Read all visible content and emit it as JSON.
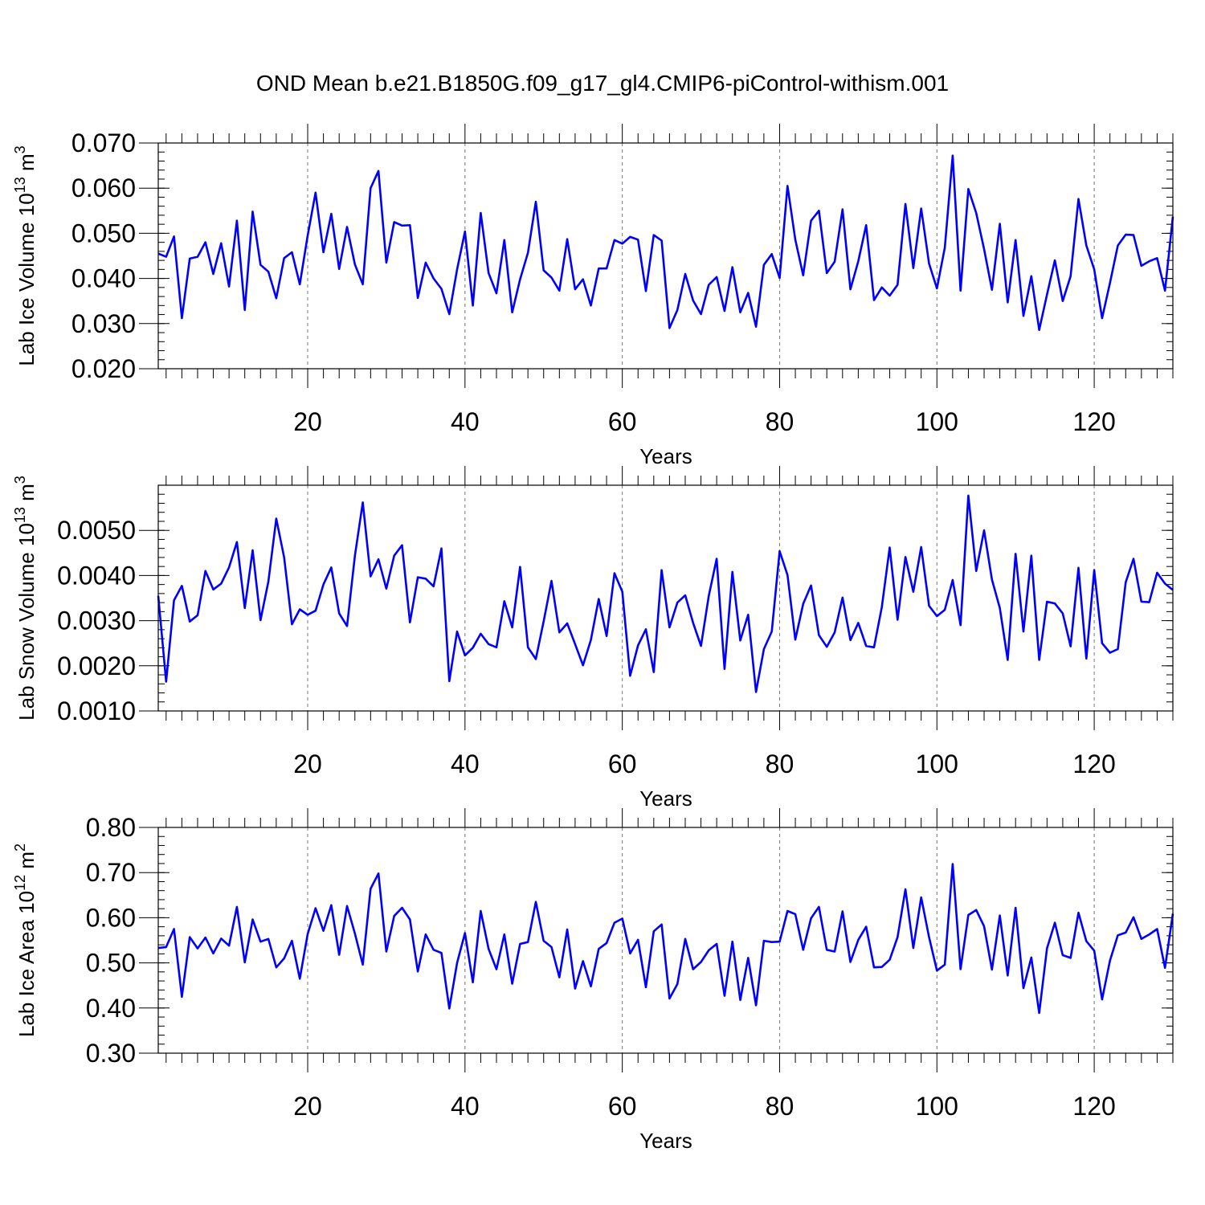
{
  "figure_title": "OND Mean b.e21.B1850G.f09_g17_gl4.CMIP6-piControl-withism.001",
  "colors": {
    "series": "#0000ff",
    "grid": "#777777",
    "frame": "#000000"
  },
  "chart_data": [
    {
      "type": "line",
      "name": "ice-volume",
      "ylabel": {
        "base": "Lab Ice Volume 10",
        "exp": "13",
        "unit": " m",
        "unit_exp": "3"
      },
      "xlabel": "Years",
      "xlim": [
        1,
        130
      ],
      "ylim": [
        0.02,
        0.07
      ],
      "xticks": [
        20,
        40,
        60,
        80,
        100,
        120
      ],
      "xtick_labels": [
        "20",
        "40",
        "60",
        "80",
        "100",
        "120"
      ],
      "yticks": [
        0.02,
        0.03,
        0.04,
        0.05,
        0.06,
        0.07
      ],
      "ytick_labels": [
        "0.020",
        "0.030",
        "0.040",
        "0.050",
        "0.060",
        "0.070"
      ],
      "y_minor_step": 0.002,
      "grid": "vertical-dashed",
      "x": [
        1,
        2,
        3,
        4,
        5,
        6,
        7,
        8,
        9,
        10,
        11,
        12,
        13,
        14,
        15,
        16,
        17,
        18,
        19,
        20,
        21,
        22,
        23,
        24,
        25,
        26,
        27,
        28,
        29,
        30,
        31,
        32,
        33,
        34,
        35,
        36,
        37,
        38,
        39,
        40,
        41,
        42,
        43,
        44,
        45,
        46,
        47,
        48,
        49,
        50,
        51,
        52,
        53,
        54,
        55,
        56,
        57,
        58,
        59,
        60,
        61,
        62,
        63,
        64,
        65,
        66,
        67,
        68,
        69,
        70,
        71,
        72,
        73,
        74,
        75,
        76,
        77,
        78,
        79,
        80,
        81,
        82,
        83,
        84,
        85,
        86,
        87,
        88,
        89,
        90,
        91,
        92,
        93,
        94,
        95,
        96,
        97,
        98,
        99,
        100,
        101,
        102,
        103,
        104,
        105,
        106,
        107,
        108,
        109,
        110,
        111,
        112,
        113,
        114,
        115,
        116,
        117,
        118,
        119,
        120,
        121,
        122,
        123,
        124,
        125,
        126,
        127,
        128,
        129,
        130
      ],
      "values": [
        0.0455,
        0.0448,
        0.0493,
        0.0312,
        0.0444,
        0.0448,
        0.048,
        0.041,
        0.0478,
        0.0382,
        0.0528,
        0.033,
        0.0548,
        0.043,
        0.0415,
        0.0356,
        0.0445,
        0.0458,
        0.0387,
        0.0495,
        0.059,
        0.0458,
        0.0543,
        0.0421,
        0.0514,
        0.0431,
        0.0387,
        0.06,
        0.0638,
        0.0435,
        0.0525,
        0.0517,
        0.0518,
        0.0357,
        0.0435,
        0.04,
        0.0377,
        0.0321,
        0.042,
        0.0504,
        0.034,
        0.0545,
        0.0412,
        0.0367,
        0.0485,
        0.0325,
        0.0398,
        0.0457,
        0.057,
        0.0418,
        0.0402,
        0.0373,
        0.0487,
        0.0376,
        0.0398,
        0.034,
        0.0422,
        0.0422,
        0.0485,
        0.0477,
        0.0492,
        0.0486,
        0.0372,
        0.0496,
        0.0484,
        0.029,
        0.033,
        0.041,
        0.0351,
        0.0321,
        0.0386,
        0.0403,
        0.0328,
        0.0425,
        0.0325,
        0.0368,
        0.0293,
        0.043,
        0.0454,
        0.0401,
        0.0605,
        0.0486,
        0.0407,
        0.0528,
        0.055,
        0.0412,
        0.0437,
        0.0553,
        0.0376,
        0.0438,
        0.0518,
        0.0352,
        0.038,
        0.0362,
        0.0386,
        0.0565,
        0.0423,
        0.0555,
        0.0433,
        0.0378,
        0.0468,
        0.0672,
        0.0373,
        0.0598,
        0.0545,
        0.0465,
        0.0375,
        0.0521,
        0.0347,
        0.0485,
        0.0317,
        0.0405,
        0.0286,
        0.0364,
        0.044,
        0.035,
        0.0405,
        0.0576,
        0.0473,
        0.042,
        0.0312,
        0.039,
        0.0473,
        0.0497,
        0.0496,
        0.0428,
        0.0438,
        0.0445,
        0.0373,
        0.0537
      ]
    },
    {
      "type": "line",
      "name": "snow-volume",
      "ylabel": {
        "base": "Lab Snow Volume 10",
        "exp": "13",
        "unit": " m",
        "unit_exp": "3"
      },
      "xlabel": "Years",
      "xlim": [
        1,
        130
      ],
      "ylim": [
        0.001,
        0.006
      ],
      "xticks": [
        20,
        40,
        60,
        80,
        100,
        120
      ],
      "xtick_labels": [
        "20",
        "40",
        "60",
        "80",
        "100",
        "120"
      ],
      "yticks": [
        0.001,
        0.002,
        0.003,
        0.004,
        0.005
      ],
      "ytick_labels": [
        "0.0010",
        "0.0020",
        "0.0030",
        "0.0040",
        "0.0050"
      ],
      "y_minor_step": 0.0002,
      "grid": "vertical-dashed",
      "x": [
        1,
        2,
        3,
        4,
        5,
        6,
        7,
        8,
        9,
        10,
        11,
        12,
        13,
        14,
        15,
        16,
        17,
        18,
        19,
        20,
        21,
        22,
        23,
        24,
        25,
        26,
        27,
        28,
        29,
        30,
        31,
        32,
        33,
        34,
        35,
        36,
        37,
        38,
        39,
        40,
        41,
        42,
        43,
        44,
        45,
        46,
        47,
        48,
        49,
        50,
        51,
        52,
        53,
        54,
        55,
        56,
        57,
        58,
        59,
        60,
        61,
        62,
        63,
        64,
        65,
        66,
        67,
        68,
        69,
        70,
        71,
        72,
        73,
        74,
        75,
        76,
        77,
        78,
        79,
        80,
        81,
        82,
        83,
        84,
        85,
        86,
        87,
        88,
        89,
        90,
        91,
        92,
        93,
        94,
        95,
        96,
        97,
        98,
        99,
        100,
        101,
        102,
        103,
        104,
        105,
        106,
        107,
        108,
        109,
        110,
        111,
        112,
        113,
        114,
        115,
        116,
        117,
        118,
        119,
        120,
        121,
        122,
        123,
        124,
        125,
        126,
        127,
        128,
        129,
        130
      ],
      "values": [
        0.00355,
        0.00165,
        0.00345,
        0.00377,
        0.00298,
        0.00312,
        0.0041,
        0.00369,
        0.00382,
        0.00418,
        0.00474,
        0.00328,
        0.00456,
        0.00301,
        0.00387,
        0.00526,
        0.0044,
        0.00292,
        0.00325,
        0.00313,
        0.00322,
        0.0038,
        0.00418,
        0.00316,
        0.00288,
        0.00444,
        0.00562,
        0.00398,
        0.00436,
        0.00371,
        0.00444,
        0.00467,
        0.00296,
        0.00396,
        0.00393,
        0.00376,
        0.0046,
        0.00166,
        0.00276,
        0.00223,
        0.0024,
        0.00271,
        0.00248,
        0.00241,
        0.00343,
        0.00285,
        0.00419,
        0.00241,
        0.00215,
        0.00298,
        0.00388,
        0.00274,
        0.00294,
        0.00248,
        0.00201,
        0.00257,
        0.00348,
        0.00266,
        0.00405,
        0.00364,
        0.00178,
        0.00245,
        0.00281,
        0.00186,
        0.00412,
        0.00285,
        0.0034,
        0.00356,
        0.00295,
        0.00244,
        0.00355,
        0.00437,
        0.00193,
        0.00408,
        0.00256,
        0.00313,
        0.00142,
        0.00237,
        0.00276,
        0.00454,
        0.00401,
        0.00258,
        0.00337,
        0.00378,
        0.00268,
        0.00242,
        0.00274,
        0.00351,
        0.00257,
        0.00295,
        0.00244,
        0.00241,
        0.0033,
        0.00462,
        0.00302,
        0.00441,
        0.00364,
        0.00463,
        0.00333,
        0.0031,
        0.00324,
        0.0039,
        0.0029,
        0.00577,
        0.0041,
        0.005,
        0.00391,
        0.00328,
        0.00213,
        0.00448,
        0.00276,
        0.00444,
        0.00213,
        0.00342,
        0.00338,
        0.00316,
        0.00243,
        0.00417,
        0.00216,
        0.00412,
        0.0025,
        0.00229,
        0.00237,
        0.00385,
        0.00437,
        0.00342,
        0.00341,
        0.00406,
        0.00382,
        0.00368
      ]
    },
    {
      "type": "line",
      "name": "ice-area",
      "ylabel": {
        "base": "Lab Ice Area 10",
        "exp": "12",
        "unit": " m",
        "unit_exp": "2"
      },
      "xlabel": "Years",
      "xlim": [
        1,
        130
      ],
      "ylim": [
        0.3,
        0.8
      ],
      "xticks": [
        20,
        40,
        60,
        80,
        100,
        120
      ],
      "xtick_labels": [
        "20",
        "40",
        "60",
        "80",
        "100",
        "120"
      ],
      "yticks": [
        0.3,
        0.4,
        0.5,
        0.6,
        0.7,
        0.8
      ],
      "ytick_labels": [
        "0.30",
        "0.40",
        "0.50",
        "0.60",
        "0.70",
        "0.80"
      ],
      "y_minor_step": 0.02,
      "grid": "vertical-dashed",
      "x": [
        1,
        2,
        3,
        4,
        5,
        6,
        7,
        8,
        9,
        10,
        11,
        12,
        13,
        14,
        15,
        16,
        17,
        18,
        19,
        20,
        21,
        22,
        23,
        24,
        25,
        26,
        27,
        28,
        29,
        30,
        31,
        32,
        33,
        34,
        35,
        36,
        37,
        38,
        39,
        40,
        41,
        42,
        43,
        44,
        45,
        46,
        47,
        48,
        49,
        50,
        51,
        52,
        53,
        54,
        55,
        56,
        57,
        58,
        59,
        60,
        61,
        62,
        63,
        64,
        65,
        66,
        67,
        68,
        69,
        70,
        71,
        72,
        73,
        74,
        75,
        76,
        77,
        78,
        79,
        80,
        81,
        82,
        83,
        84,
        85,
        86,
        87,
        88,
        89,
        90,
        91,
        92,
        93,
        94,
        95,
        96,
        97,
        98,
        99,
        100,
        101,
        102,
        103,
        104,
        105,
        106,
        107,
        108,
        109,
        110,
        111,
        112,
        113,
        114,
        115,
        116,
        117,
        118,
        119,
        120,
        121,
        122,
        123,
        124,
        125,
        126,
        127,
        128,
        129,
        130
      ],
      "values": [
        0.533,
        0.535,
        0.575,
        0.425,
        0.557,
        0.532,
        0.556,
        0.521,
        0.554,
        0.538,
        0.624,
        0.501,
        0.596,
        0.547,
        0.553,
        0.49,
        0.51,
        0.549,
        0.465,
        0.564,
        0.621,
        0.571,
        0.628,
        0.518,
        0.626,
        0.565,
        0.496,
        0.664,
        0.698,
        0.525,
        0.604,
        0.622,
        0.596,
        0.481,
        0.563,
        0.529,
        0.522,
        0.399,
        0.5,
        0.566,
        0.457,
        0.615,
        0.531,
        0.486,
        0.563,
        0.454,
        0.542,
        0.546,
        0.635,
        0.549,
        0.535,
        0.468,
        0.574,
        0.443,
        0.504,
        0.448,
        0.531,
        0.544,
        0.589,
        0.598,
        0.521,
        0.551,
        0.446,
        0.57,
        0.585,
        0.421,
        0.453,
        0.553,
        0.486,
        0.502,
        0.528,
        0.542,
        0.427,
        0.547,
        0.418,
        0.511,
        0.406,
        0.549,
        0.546,
        0.547,
        0.615,
        0.608,
        0.529,
        0.599,
        0.624,
        0.529,
        0.525,
        0.614,
        0.502,
        0.551,
        0.58,
        0.49,
        0.491,
        0.507,
        0.557,
        0.663,
        0.533,
        0.645,
        0.557,
        0.483,
        0.496,
        0.719,
        0.486,
        0.606,
        0.617,
        0.581,
        0.485,
        0.605,
        0.472,
        0.622,
        0.444,
        0.512,
        0.389,
        0.532,
        0.589,
        0.517,
        0.511,
        0.611,
        0.548,
        0.527,
        0.419,
        0.505,
        0.561,
        0.567,
        0.601,
        0.553,
        0.563,
        0.575,
        0.489,
        0.609
      ]
    }
  ]
}
